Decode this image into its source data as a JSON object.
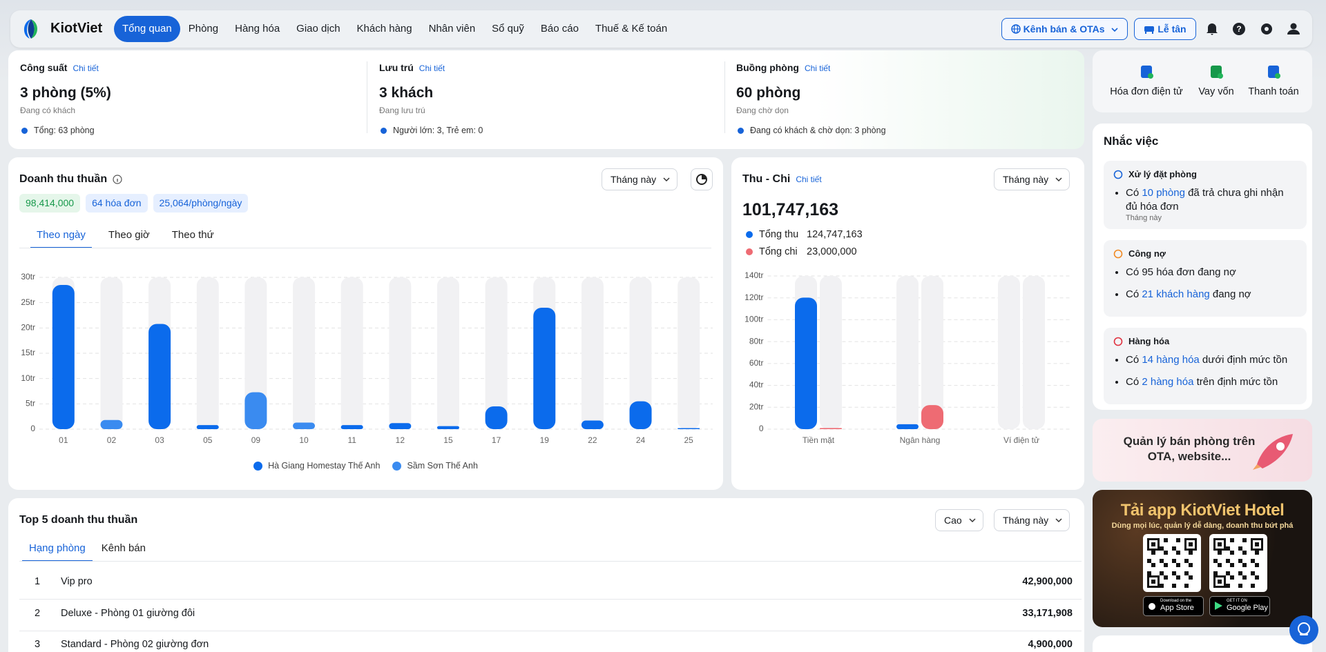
{
  "nav": {
    "brand": "KiotViet",
    "items": [
      "Tổng quan",
      "Phòng",
      "Hàng hóa",
      "Giao dịch",
      "Khách hàng",
      "Nhân viên",
      "Sổ quỹ",
      "Báo cáo",
      "Thuế & Kế toán"
    ],
    "channels": "Kênh bán & OTAs",
    "reception": "Lễ tân"
  },
  "summary": [
    {
      "title": "Công suất",
      "link": "Chi tiết",
      "value": "3 phòng (5%)",
      "caption": "Đang có khách",
      "note": "Tổng: 63 phòng"
    },
    {
      "title": "Lưu trú",
      "link": "Chi tiết",
      "value": "3 khách",
      "caption": "Đang lưu trú",
      "note": "Người lớn: 3, Trẻ em: 0"
    },
    {
      "title": "Buồng phòng",
      "link": "Chi tiết",
      "value": "60 phòng",
      "caption": "Đang chờ dọn",
      "note": "Đang có khách & chờ dọn: 3 phòng"
    }
  ],
  "chart_data": [
    {
      "type": "bar",
      "stacked": true,
      "title": "Doanh thu thuần",
      "badges": [
        "98,414,000",
        "64 hóa đơn",
        "25,064/phòng/ngày"
      ],
      "period": "Tháng này",
      "tabs": [
        "Theo ngày",
        "Theo giờ",
        "Theo thứ"
      ],
      "categories": [
        "01",
        "02",
        "03",
        "05",
        "09",
        "10",
        "11",
        "12",
        "15",
        "17",
        "19",
        "22",
        "24",
        "25"
      ],
      "series": [
        {
          "name": "Hà Giang Homestay Thế Anh",
          "color": "#0b6bec",
          "values": [
            28.5,
            0,
            20.8,
            0.8,
            0,
            0,
            0.8,
            1.2,
            0.6,
            4.5,
            24,
            1.7,
            5.5,
            0.2
          ]
        },
        {
          "name": "Sầm Sơn Thế Anh",
          "color": "#3a8bf0",
          "values": [
            0,
            1.8,
            0,
            0,
            7.3,
            1.3,
            0,
            0,
            0,
            0,
            0,
            0,
            0,
            0
          ]
        }
      ],
      "ylim": [
        0,
        30
      ],
      "yticks": [
        0,
        {
          "value": 5,
          "label": "5tr"
        },
        {
          "value": 10,
          "label": "10tr"
        },
        {
          "value": 15,
          "label": "15tr"
        },
        {
          "value": 20,
          "label": "20tr"
        },
        {
          "value": 25,
          "label": "25tr"
        },
        {
          "value": 30,
          "label": "30tr"
        }
      ],
      "grid": true,
      "legend": "bottom"
    },
    {
      "type": "bar",
      "stacked": false,
      "title": "Thu - Chi",
      "link": "Chi tiết",
      "total": "101,747,163",
      "period": "Tháng này",
      "categories": [
        "Tiền mặt",
        "Ngân hàng",
        "Ví điện tử"
      ],
      "series": [
        {
          "name": "Tổng thu",
          "total_label": "124,747,163",
          "color": "#0b6bec",
          "values": [
            120.2,
            4.5,
            0
          ]
        },
        {
          "name": "Tổng chi",
          "total_label": "23,000,000",
          "color": "#ee6b73",
          "values": [
            1,
            22,
            0
          ]
        }
      ],
      "ylim": [
        0,
        140
      ],
      "yticks": [
        0,
        {
          "value": 20,
          "label": "20tr"
        },
        {
          "value": 40,
          "label": "40tr"
        },
        {
          "value": 60,
          "label": "60tr"
        },
        {
          "value": 80,
          "label": "80tr"
        },
        {
          "value": 100,
          "label": "100tr"
        },
        {
          "value": 120,
          "label": "120tr"
        },
        {
          "value": 140,
          "label": "140tr"
        }
      ],
      "grid": true,
      "legend": "top-left"
    }
  ],
  "top5": {
    "title": "Top 5 doanh thu thuần",
    "sort": "Cao",
    "period": "Tháng này",
    "tabs": [
      "Hạng phòng",
      "Kênh bán"
    ],
    "rows": [
      [
        "1",
        "Vip pro",
        "42,900,000"
      ],
      [
        "2",
        "Deluxe - Phòng 01 giường đôi",
        "33,171,908"
      ],
      [
        "3",
        "Standard - Phòng 02 giường đơn",
        "4,900,000"
      ]
    ]
  },
  "sidebar": {
    "actions": [
      "Hóa đơn điện tử",
      "Vay vốn",
      "Thanh toán"
    ],
    "reminders": {
      "title": "Nhắc việc",
      "groups": [
        {
          "title": "Xử lý đặt phòng",
          "items": [
            [
              "Có ",
              "10 phòng",
              " đã trả chưa ghi nhận đủ hóa đơn"
            ]
          ],
          "note": "Tháng này"
        },
        {
          "title": "Công nợ",
          "items": [
            [
              "Có 95 hóa đơn đang nợ"
            ],
            [
              "Có ",
              "21 khách hàng",
              " đang nợ"
            ]
          ]
        },
        {
          "title": "Hàng hóa",
          "items": [
            [
              "Có ",
              "14 hàng hóa",
              " dưới định mức tồn"
            ],
            [
              "Có ",
              "2 hàng hóa",
              " trên định mức tồn"
            ]
          ]
        }
      ]
    },
    "banner": "Quản lý bán phòng trên OTA, website...",
    "promo": {
      "title": "Tải app KiotViet Hotel",
      "subtitle": "Dùng mọi lúc, quản lý dễ dàng, doanh thu bứt phá",
      "stores": [
        {
          "caption": "Download on the",
          "name": "App Store"
        },
        {
          "caption": "GET IT ON",
          "name": "Google Play"
        }
      ]
    }
  }
}
